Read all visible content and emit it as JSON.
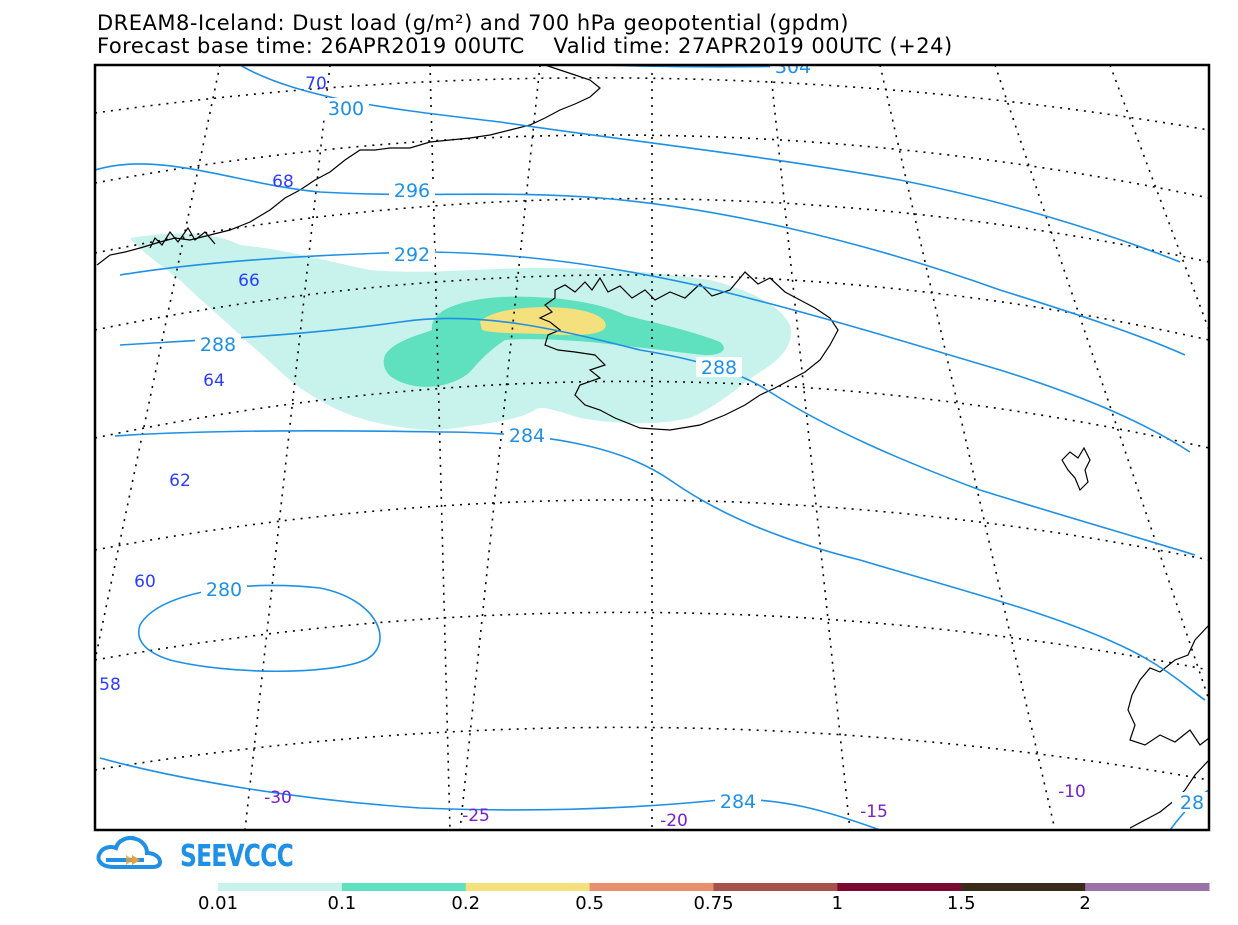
{
  "header": {
    "title_line1": "DREAM8-Iceland: Dust load (g/m²) and 700 hPa geopotential (gpdm)",
    "title_line2": "Forecast base time: 26APR2019 00UTC    Valid time: 27APR2019 00UTC (+24)"
  },
  "map": {
    "region": "Iceland",
    "variable": "Dust load (g/m²)",
    "contour_variable": "700 hPa geopotential (gpdm)",
    "dust_shading": {
      "levels": [
        "0.01-0.1",
        "0.1-0.2",
        "0.2-0.5"
      ],
      "max_area": "north-west Iceland"
    },
    "contour_labels": [
      "304",
      "300",
      "296",
      "292",
      "288",
      "288",
      "284",
      "280",
      "284",
      "28"
    ],
    "lat_labels": [
      "70",
      "68",
      "66",
      "64",
      "62",
      "60",
      "58"
    ],
    "lon_labels": [
      "-30",
      "-25",
      "-20",
      "-15",
      "-10"
    ],
    "colors": {
      "contour": "#1e90e6",
      "lat_label": "#2d3cff",
      "lon_label": "#7a1fc8",
      "coast": "#000000"
    }
  },
  "logo": {
    "text": "SEEVCCC",
    "icon": "cloud-arrow-icon",
    "color": "#1e90e6",
    "accent": "#e6a23c"
  },
  "legend": {
    "labels": [
      "0.01",
      "0.1",
      "0.2",
      "0.5",
      "0.75",
      "1",
      "1.5",
      "2"
    ],
    "colors": [
      "#c8f2ec",
      "#5fe0bf",
      "#f5e07e",
      "#e8906e",
      "#a8504a",
      "#7a0a32",
      "#3a2a18",
      "#9a72a8"
    ]
  }
}
